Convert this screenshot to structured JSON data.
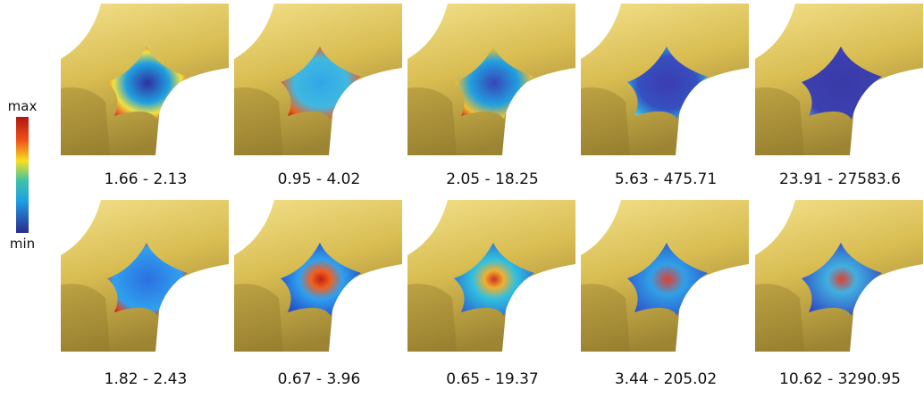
{
  "legend": {
    "max": "max",
    "min": "min"
  },
  "rows": [
    [
      "1.66 - 2.13",
      "0.95 - 4.02",
      "2.05 - 18.25",
      "5.63 - 475.71",
      "23.91 - 27583.6"
    ],
    [
      "1.82 - 2.43",
      "0.67 - 3.96",
      "0.65 - 19.37",
      "3.44 - 205.02",
      "10.62 - 3290.95"
    ]
  ]
}
